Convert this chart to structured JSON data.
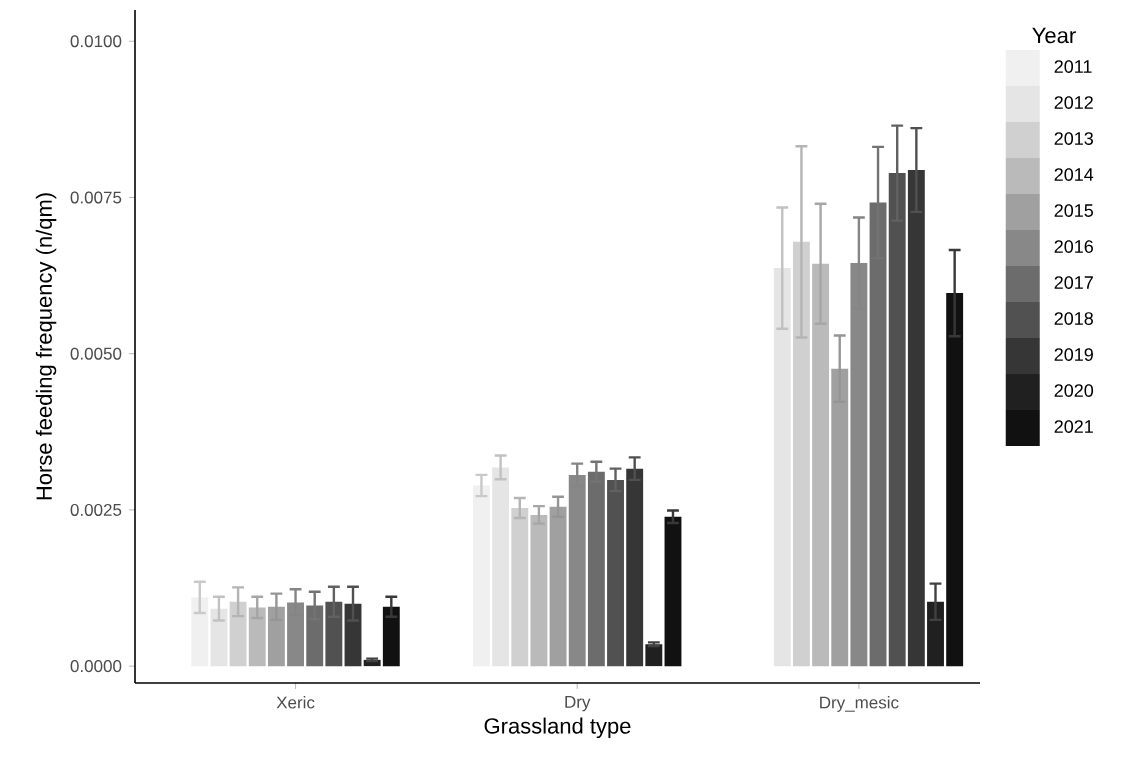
{
  "chart_data": {
    "type": "bar",
    "xlabel": "Grassland type",
    "ylabel": "Horse feeding frequency (n/qm)",
    "legend_title": "Year",
    "legend": "right",
    "categories": [
      "Xeric",
      "Dry",
      "Dry_mesic"
    ],
    "ylim": [
      -0.00027,
      0.0105
    ],
    "yticks": [
      {
        "value": 0,
        "label": "0.0000"
      },
      {
        "value": 0.0025,
        "label": "0.0025"
      },
      {
        "value": 0.005,
        "label": "0.0050"
      },
      {
        "value": 0.0075,
        "label": "0.0075"
      },
      {
        "value": 0.01,
        "label": "0.0100"
      }
    ],
    "series": [
      {
        "name": "2011",
        "color": "#f0f0f0",
        "values": [
          0.0011,
          0.00289,
          null
        ],
        "errors": [
          0.00025,
          0.00017,
          null
        ]
      },
      {
        "name": "2012",
        "color": "#e5e5e5",
        "values": [
          0.00092,
          0.00318,
          0.00637
        ],
        "errors": [
          0.00019,
          0.00019,
          0.00097
        ]
      },
      {
        "name": "2013",
        "color": "#d0d0d0",
        "values": [
          0.00103,
          0.00253,
          0.00679
        ],
        "errors": [
          0.00023,
          0.00016,
          0.00153
        ]
      },
      {
        "name": "2014",
        "color": "#bababa",
        "values": [
          0.00094,
          0.00242,
          0.00644
        ],
        "errors": [
          0.00017,
          0.00014,
          0.00096
        ]
      },
      {
        "name": "2015",
        "color": "#a0a0a0",
        "values": [
          0.00095,
          0.00255,
          0.00476
        ],
        "errors": [
          0.00021,
          0.00016,
          0.00053
        ]
      },
      {
        "name": "2016",
        "color": "#888888",
        "values": [
          0.00102,
          0.00306,
          0.00645
        ],
        "errors": [
          0.00021,
          0.00018,
          0.00073
        ]
      },
      {
        "name": "2017",
        "color": "#6c6c6c",
        "values": [
          0.00097,
          0.00311,
          0.00742
        ],
        "errors": [
          0.00022,
          0.00016,
          0.00089
        ]
      },
      {
        "name": "2018",
        "color": "#515151",
        "values": [
          0.00103,
          0.00298,
          0.00789
        ],
        "errors": [
          0.00024,
          0.00018,
          0.00076
        ]
      },
      {
        "name": "2019",
        "color": "#363636",
        "values": [
          0.001,
          0.00316,
          0.00794
        ],
        "errors": [
          0.00027,
          0.00018,
          0.00067
        ]
      },
      {
        "name": "2020",
        "color": "#202020",
        "values": [
          0.0001,
          0.00035,
          0.00103
        ],
        "errors": [
          2e-05,
          3e-05,
          0.00029
        ]
      },
      {
        "name": "2021",
        "color": "#111111",
        "values": [
          0.00095,
          0.00239,
          0.00597
        ],
        "errors": [
          0.00016,
          0.0001,
          0.00069
        ]
      }
    ]
  }
}
